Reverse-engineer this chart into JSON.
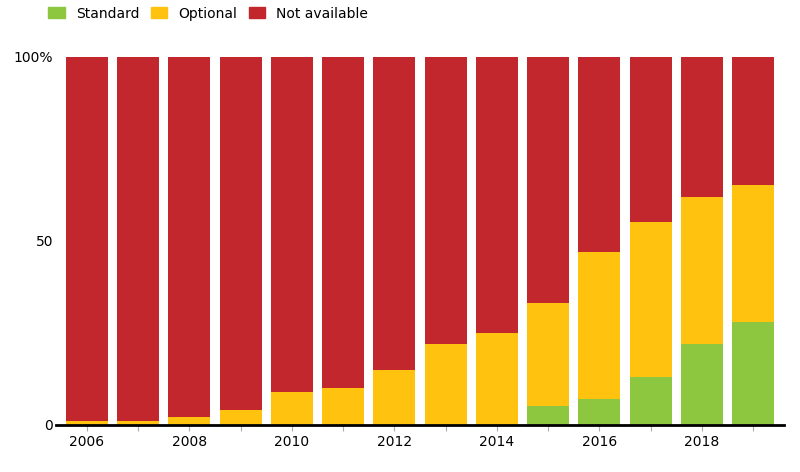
{
  "years": [
    2006,
    2007,
    2008,
    2009,
    2010,
    2011,
    2012,
    2013,
    2014,
    2015,
    2016,
    2017,
    2018,
    2019
  ],
  "standard": [
    0,
    0,
    0,
    0,
    0,
    0,
    0,
    0,
    0,
    5,
    7,
    13,
    22,
    28
  ],
  "optional": [
    1,
    1,
    2,
    4,
    9,
    10,
    15,
    22,
    25,
    28,
    40,
    42,
    40,
    37
  ],
  "not_available": [
    99,
    99,
    98,
    96,
    91,
    90,
    85,
    78,
    75,
    67,
    53,
    45,
    38,
    35
  ],
  "colors": {
    "standard": "#8dc63f",
    "optional": "#ffc20e",
    "not_available": "#c1272d"
  },
  "legend_labels": [
    "Standard",
    "Optional",
    "Not available"
  ],
  "ytick_labels": [
    "0",
    "50",
    "100%"
  ],
  "ytick_values": [
    0,
    50,
    100
  ],
  "ylim": [
    0,
    100
  ],
  "background_color": "#ffffff",
  "bar_width": 0.82
}
